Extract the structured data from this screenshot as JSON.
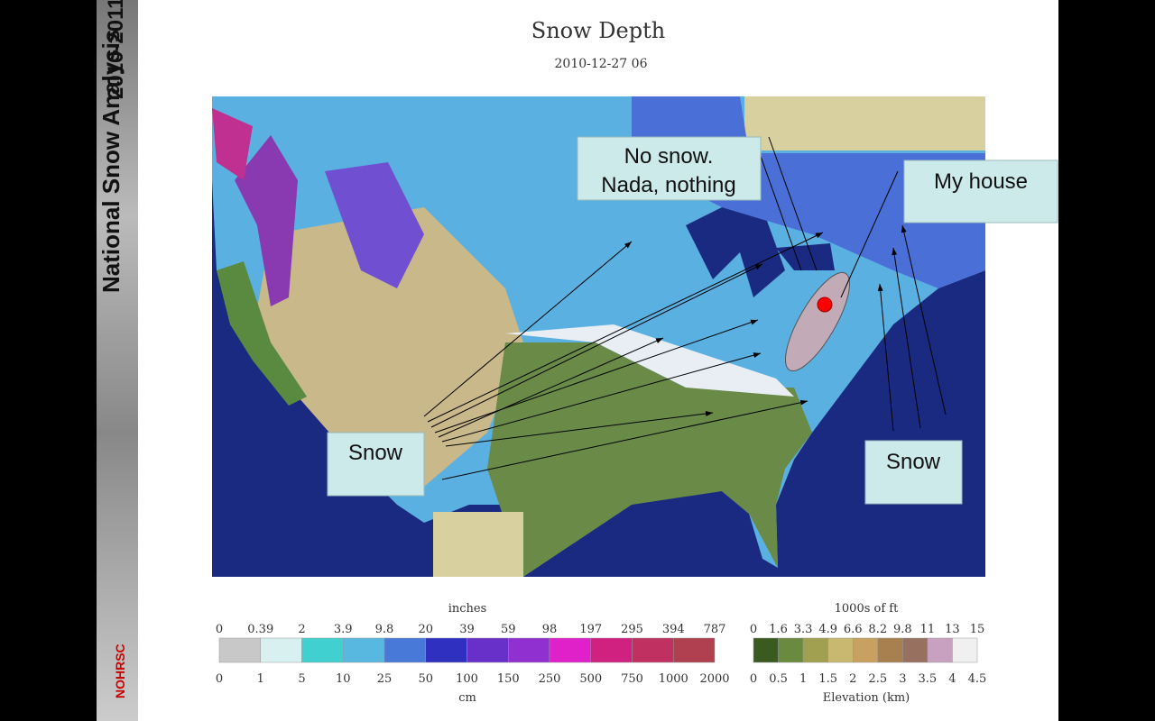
{
  "sidebar": {
    "title": "National Snow Analysis",
    "years": "2010-2011",
    "logo": "NOHRSC"
  },
  "map": {
    "title": "Snow Depth",
    "date": "2010-12-27 06"
  },
  "callouts": {
    "no_snow": [
      "No snow.",
      "Nada, nothing"
    ],
    "my_house": "My house",
    "snow_left": "Snow",
    "snow_right": "Snow"
  },
  "legend_snow": {
    "top_unit": "inches",
    "top": [
      "0",
      "0.39",
      "2",
      "3.9",
      "9.8",
      "20",
      "39",
      "59",
      "98",
      "197",
      "295",
      "394",
      "787"
    ],
    "bottom": [
      "0",
      "1",
      "5",
      "10",
      "25",
      "50",
      "100",
      "150",
      "250",
      "500",
      "750",
      "1000",
      "2000"
    ],
    "bottom_unit": "cm"
  },
  "legend_elev": {
    "top_unit": "1000s of ft",
    "top": [
      "0",
      "1.6",
      "3.3",
      "4.9",
      "6.6",
      "8.2",
      "9.8",
      "11",
      "13",
      "15"
    ],
    "bottom": [
      "0",
      "0.5",
      "1",
      "1.5",
      "2",
      "2.5",
      "3",
      "3.5",
      "4",
      "4.5"
    ],
    "bottom_unit": "Elevation (km)"
  }
}
